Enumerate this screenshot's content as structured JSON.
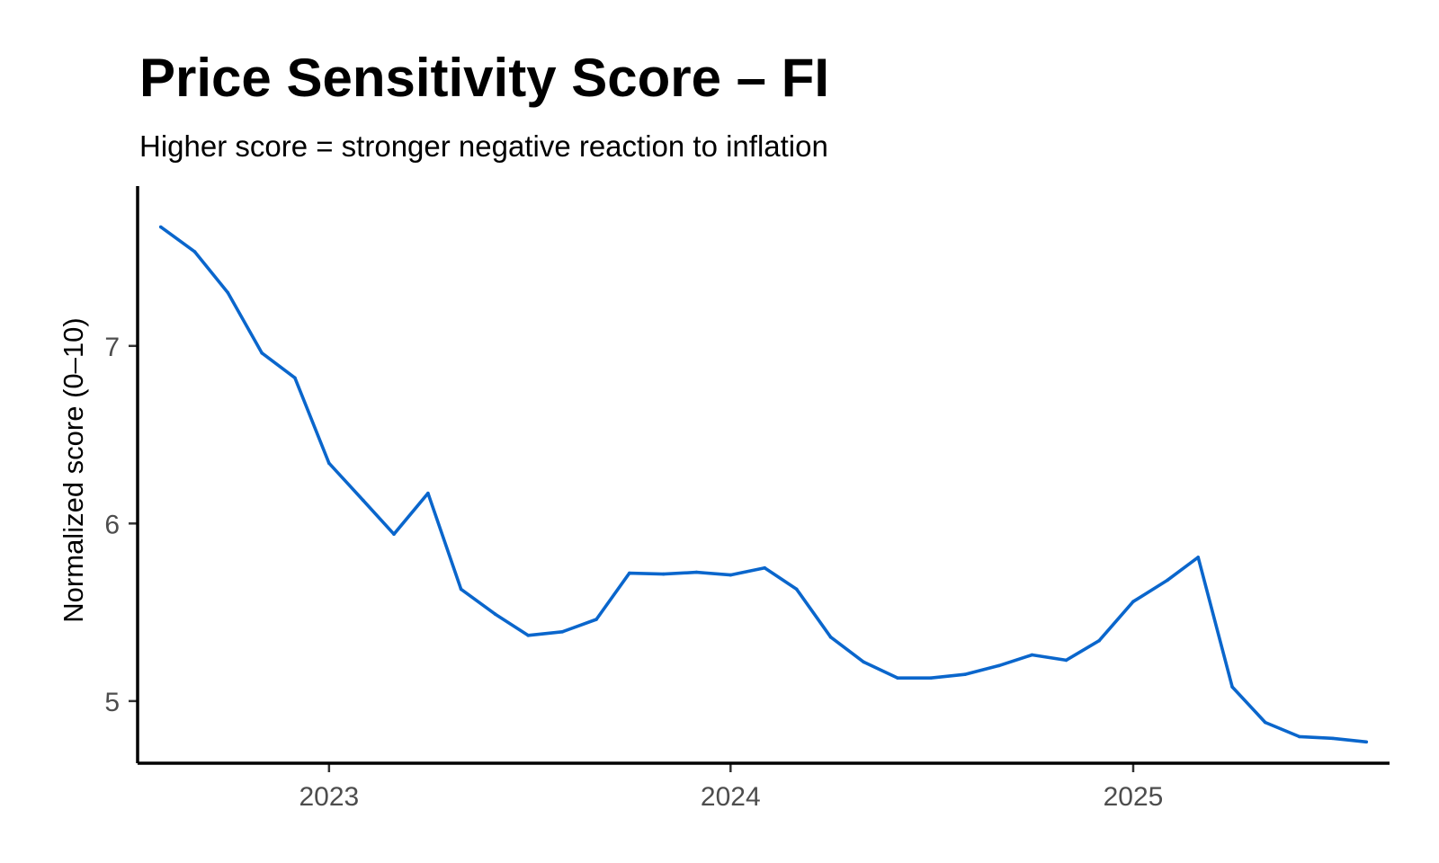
{
  "title": "Price Sensitivity Score – FI",
  "subtitle": "Higher score = stronger negative reaction to inflation",
  "colors": {
    "line": "#0a66cc",
    "axis": "#000000",
    "tick_label": "#4d4d4d"
  },
  "chart_data": {
    "type": "line",
    "title": "Price Sensitivity Score – FI",
    "subtitle": "Higher score = stronger negative reaction to inflation",
    "xlabel": "",
    "ylabel": "Normalized score (0–10)",
    "x_ticks": [
      "2023",
      "2024",
      "2025"
    ],
    "y_ticks": [
      5,
      6,
      7
    ],
    "xlim": [
      "2022-07-11",
      "2025-08-22"
    ],
    "ylim": [
      4.65,
      7.9
    ],
    "grid": false,
    "legend": "none",
    "x": [
      "2022-08-01",
      "2022-09-01",
      "2022-10-01",
      "2022-11-01",
      "2022-12-01",
      "2023-01-01",
      "2023-02-01",
      "2023-03-01",
      "2023-04-01",
      "2023-05-01",
      "2023-06-01",
      "2023-07-01",
      "2023-08-01",
      "2023-09-01",
      "2023-10-01",
      "2023-11-01",
      "2023-12-01",
      "2024-01-01",
      "2024-02-01",
      "2024-03-01",
      "2024-04-01",
      "2024-05-01",
      "2024-06-01",
      "2024-07-01",
      "2024-08-01",
      "2024-09-01",
      "2024-10-01",
      "2024-11-01",
      "2024-12-01",
      "2025-01-01",
      "2025-02-01",
      "2025-03-01",
      "2025-04-01",
      "2025-05-01",
      "2025-06-01",
      "2025-07-01",
      "2025-08-01"
    ],
    "series": [
      {
        "values": [
          7.67,
          7.53,
          7.3,
          6.96,
          6.82,
          6.34,
          6.13,
          5.94,
          6.17,
          5.63,
          5.49,
          5.37,
          5.39,
          5.46,
          5.72,
          5.715,
          5.725,
          5.71,
          5.75,
          5.63,
          5.36,
          5.22,
          5.13,
          5.13,
          5.15,
          5.2,
          5.26,
          5.23,
          5.34,
          5.56,
          5.68,
          5.81,
          5.08,
          4.88,
          4.8,
          4.79,
          4.77
        ]
      }
    ]
  }
}
